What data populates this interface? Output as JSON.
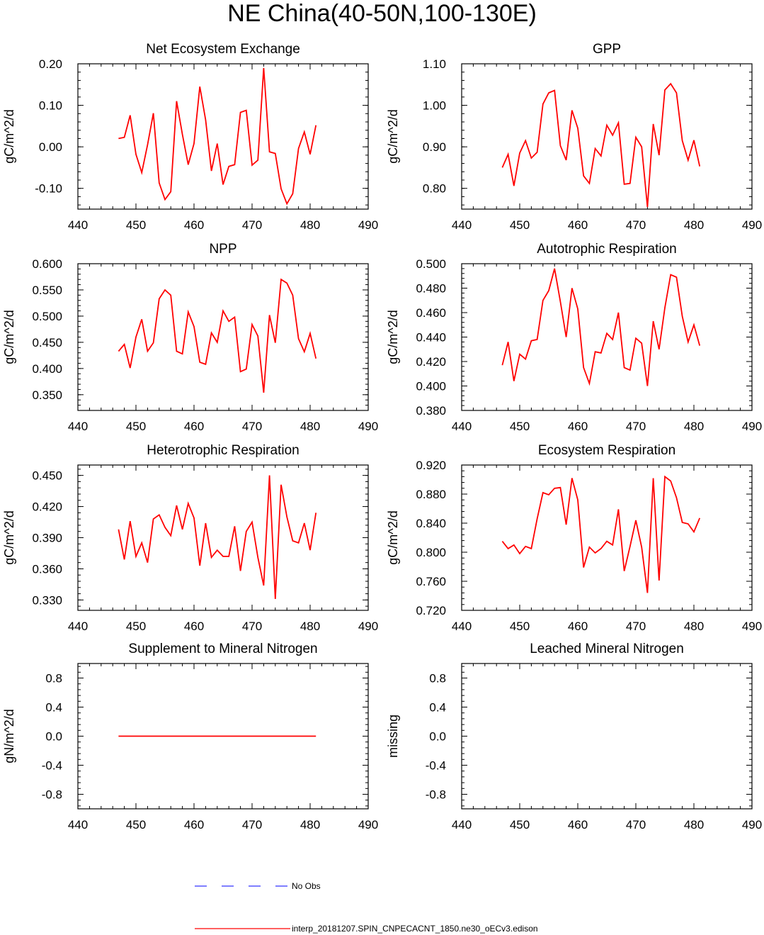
{
  "figure": {
    "title": "NE China(40-50N,100-130E)"
  },
  "legend": {
    "entries": [
      {
        "label": "No Obs",
        "color": "#3333ff",
        "style": "dashed"
      },
      {
        "label": "interp_20181207.SPIN_CNPECACNT_1850.ne30_oECv3.edison",
        "color": "#ff0000",
        "style": "solid"
      }
    ]
  },
  "chart_data": [
    {
      "type": "line",
      "title": "Net Ecosystem Exchange",
      "ylabel": "gC/m^2/d",
      "xlim": [
        440,
        490
      ],
      "ylim": [
        -0.15,
        0.2
      ],
      "xticks": [
        "440",
        "450",
        "460",
        "470",
        "480",
        "490"
      ],
      "yticks": [
        {
          "value": -0.1,
          "label": "-0.10"
        },
        {
          "value": 0.0,
          "label": "0.00"
        },
        {
          "value": 0.1,
          "label": "0.10"
        },
        {
          "value": 0.2,
          "label": "0.20"
        }
      ],
      "series": [
        {
          "name": "interp_20181207.SPIN_CNPECACNT_1850.ne30_oECv3.edison",
          "color": "#ff0000",
          "x": [
            447,
            448,
            449,
            450,
            451,
            452,
            453,
            454,
            455,
            456,
            457,
            458,
            459,
            460,
            461,
            462,
            463,
            464,
            465,
            466,
            467,
            468,
            469,
            470,
            471,
            472,
            473,
            474,
            475,
            476,
            477,
            478,
            479,
            480,
            481
          ],
          "y": [
            0.02,
            0.023,
            0.076,
            -0.018,
            -0.062,
            0.005,
            0.081,
            -0.087,
            -0.127,
            -0.108,
            0.11,
            0.03,
            -0.043,
            0.008,
            0.145,
            0.065,
            -0.058,
            0.008,
            -0.091,
            -0.047,
            -0.043,
            0.083,
            0.088,
            -0.044,
            -0.032,
            0.19,
            -0.012,
            -0.016,
            -0.101,
            -0.137,
            -0.113,
            -0.004,
            0.036,
            -0.018,
            0.052
          ]
        }
      ]
    },
    {
      "type": "line",
      "title": "GPP",
      "ylabel": "gC/m^2/d",
      "xlim": [
        440,
        490
      ],
      "ylim": [
        0.75,
        1.1
      ],
      "xticks": [
        "440",
        "450",
        "460",
        "470",
        "480",
        "490"
      ],
      "yticks": [
        {
          "value": 0.8,
          "label": "0.80"
        },
        {
          "value": 0.9,
          "label": "0.90"
        },
        {
          "value": 1.0,
          "label": "1.00"
        },
        {
          "value": 1.1,
          "label": "1.10"
        }
      ],
      "series": [
        {
          "name": "interp_20181207.SPIN_CNPECACNT_1850.ne30_oECv3.edison",
          "color": "#ff0000",
          "x": [
            447,
            448,
            449,
            450,
            451,
            452,
            453,
            454,
            455,
            456,
            457,
            458,
            459,
            460,
            461,
            462,
            463,
            464,
            465,
            466,
            467,
            468,
            469,
            470,
            471,
            472,
            473,
            474,
            475,
            476,
            477,
            478,
            479,
            480,
            481
          ],
          "y": [
            0.85,
            0.882,
            0.806,
            0.885,
            0.915,
            0.873,
            0.887,
            1.003,
            1.03,
            1.036,
            0.903,
            0.868,
            0.988,
            0.945,
            0.83,
            0.812,
            0.896,
            0.878,
            0.952,
            0.928,
            0.958,
            0.81,
            0.812,
            0.923,
            0.9,
            0.755,
            0.955,
            0.88,
            1.037,
            1.052,
            1.03,
            0.915,
            0.868,
            0.916,
            0.853
          ]
        }
      ]
    },
    {
      "type": "line",
      "title": "NPP",
      "ylabel": "gC/m^2/d",
      "xlim": [
        440,
        490
      ],
      "ylim": [
        0.32,
        0.6
      ],
      "xticks": [
        "440",
        "450",
        "460",
        "470",
        "480",
        "490"
      ],
      "yticks": [
        {
          "value": 0.35,
          "label": "0.350"
        },
        {
          "value": 0.4,
          "label": "0.400"
        },
        {
          "value": 0.45,
          "label": "0.450"
        },
        {
          "value": 0.5,
          "label": "0.500"
        },
        {
          "value": 0.55,
          "label": "0.550"
        },
        {
          "value": 0.6,
          "label": "0.600"
        }
      ],
      "series": [
        {
          "name": "interp_20181207.SPIN_CNPECACNT_1850.ne30_oECv3.edison",
          "color": "#ff0000",
          "x": [
            447,
            448,
            449,
            450,
            451,
            452,
            453,
            454,
            455,
            456,
            457,
            458,
            459,
            460,
            461,
            462,
            463,
            464,
            465,
            466,
            467,
            468,
            469,
            470,
            471,
            472,
            473,
            474,
            475,
            476,
            477,
            478,
            479,
            480,
            481
          ],
          "y": [
            0.433,
            0.446,
            0.401,
            0.46,
            0.494,
            0.433,
            0.449,
            0.533,
            0.55,
            0.54,
            0.433,
            0.428,
            0.508,
            0.48,
            0.412,
            0.408,
            0.468,
            0.45,
            0.51,
            0.49,
            0.498,
            0.394,
            0.399,
            0.484,
            0.462,
            0.354,
            0.502,
            0.449,
            0.57,
            0.563,
            0.54,
            0.457,
            0.432,
            0.467,
            0.419
          ]
        }
      ]
    },
    {
      "type": "line",
      "title": "Autotrophic Respiration",
      "ylabel": "gC/m^2/d",
      "xlim": [
        440,
        490
      ],
      "ylim": [
        0.38,
        0.5
      ],
      "xticks": [
        "440",
        "450",
        "460",
        "470",
        "480",
        "490"
      ],
      "yticks": [
        {
          "value": 0.38,
          "label": "0.380"
        },
        {
          "value": 0.4,
          "label": "0.400"
        },
        {
          "value": 0.42,
          "label": "0.420"
        },
        {
          "value": 0.44,
          "label": "0.440"
        },
        {
          "value": 0.46,
          "label": "0.460"
        },
        {
          "value": 0.48,
          "label": "0.480"
        },
        {
          "value": 0.5,
          "label": "0.500"
        }
      ],
      "series": [
        {
          "name": "interp_20181207.SPIN_CNPECACNT_1850.ne30_oECv3.edison",
          "color": "#ff0000",
          "x": [
            447,
            448,
            449,
            450,
            451,
            452,
            453,
            454,
            455,
            456,
            457,
            458,
            459,
            460,
            461,
            462,
            463,
            464,
            465,
            466,
            467,
            468,
            469,
            470,
            471,
            472,
            473,
            474,
            475,
            476,
            477,
            478,
            479,
            480,
            481
          ],
          "y": [
            0.417,
            0.436,
            0.404,
            0.426,
            0.422,
            0.437,
            0.438,
            0.47,
            0.478,
            0.496,
            0.469,
            0.44,
            0.48,
            0.463,
            0.415,
            0.402,
            0.428,
            0.427,
            0.443,
            0.438,
            0.46,
            0.415,
            0.413,
            0.439,
            0.435,
            0.4,
            0.453,
            0.43,
            0.464,
            0.491,
            0.489,
            0.457,
            0.436,
            0.45,
            0.433
          ]
        }
      ]
    },
    {
      "type": "line",
      "title": "Heterotrophic Respiration",
      "ylabel": "gC/m^2/d",
      "xlim": [
        440,
        490
      ],
      "ylim": [
        0.32,
        0.46
      ],
      "xticks": [
        "440",
        "450",
        "460",
        "470",
        "480",
        "490"
      ],
      "yticks": [
        {
          "value": 0.33,
          "label": "0.330"
        },
        {
          "value": 0.36,
          "label": "0.360"
        },
        {
          "value": 0.39,
          "label": "0.390"
        },
        {
          "value": 0.42,
          "label": "0.420"
        },
        {
          "value": 0.45,
          "label": "0.450"
        }
      ],
      "series": [
        {
          "name": "interp_20181207.SPIN_CNPECACNT_1850.ne30_oECv3.edison",
          "color": "#ff0000",
          "x": [
            447,
            448,
            449,
            450,
            451,
            452,
            453,
            454,
            455,
            456,
            457,
            458,
            459,
            460,
            461,
            462,
            463,
            464,
            465,
            466,
            467,
            468,
            469,
            470,
            471,
            472,
            473,
            474,
            475,
            476,
            477,
            478,
            479,
            480,
            481
          ],
          "y": [
            0.398,
            0.369,
            0.406,
            0.372,
            0.385,
            0.366,
            0.408,
            0.412,
            0.4,
            0.392,
            0.421,
            0.398,
            0.423,
            0.409,
            0.363,
            0.404,
            0.371,
            0.378,
            0.372,
            0.372,
            0.401,
            0.358,
            0.396,
            0.405,
            0.371,
            0.344,
            0.45,
            0.331,
            0.441,
            0.41,
            0.387,
            0.385,
            0.404,
            0.378,
            0.414
          ]
        }
      ]
    },
    {
      "type": "line",
      "title": "Ecosystem Respiration",
      "ylabel": "gC/m^2/d",
      "xlim": [
        440,
        490
      ],
      "ylim": [
        0.72,
        0.92
      ],
      "xticks": [
        "440",
        "450",
        "460",
        "470",
        "480",
        "490"
      ],
      "yticks": [
        {
          "value": 0.72,
          "label": "0.720"
        },
        {
          "value": 0.76,
          "label": "0.760"
        },
        {
          "value": 0.8,
          "label": "0.800"
        },
        {
          "value": 0.84,
          "label": "0.840"
        },
        {
          "value": 0.88,
          "label": "0.880"
        },
        {
          "value": 0.92,
          "label": "0.920"
        }
      ],
      "series": [
        {
          "name": "interp_20181207.SPIN_CNPECACNT_1850.ne30_oECv3.edison",
          "color": "#ff0000",
          "x": [
            447,
            448,
            449,
            450,
            451,
            452,
            453,
            454,
            455,
            456,
            457,
            458,
            459,
            460,
            461,
            462,
            463,
            464,
            465,
            466,
            467,
            468,
            469,
            470,
            471,
            472,
            473,
            474,
            475,
            476,
            477,
            478,
            479,
            480,
            481
          ],
          "y": [
            0.815,
            0.805,
            0.81,
            0.798,
            0.808,
            0.805,
            0.846,
            0.882,
            0.879,
            0.888,
            0.889,
            0.838,
            0.902,
            0.872,
            0.779,
            0.807,
            0.799,
            0.805,
            0.815,
            0.81,
            0.859,
            0.774,
            0.808,
            0.844,
            0.807,
            0.744,
            0.902,
            0.761,
            0.904,
            0.898,
            0.875,
            0.841,
            0.839,
            0.828,
            0.847
          ]
        }
      ]
    },
    {
      "type": "line",
      "title": "Supplement to Mineral Nitrogen",
      "ylabel": "gN/m^2/d",
      "xlim": [
        440,
        490
      ],
      "ylim": [
        -1.0,
        1.0
      ],
      "xticks": [
        "440",
        "450",
        "460",
        "470",
        "480",
        "490"
      ],
      "yticks": [
        {
          "value": -0.8,
          "label": "-0.8"
        },
        {
          "value": -0.4,
          "label": "-0.4"
        },
        {
          "value": 0.0,
          "label": "0.0"
        },
        {
          "value": 0.4,
          "label": "0.4"
        },
        {
          "value": 0.8,
          "label": "0.8"
        }
      ],
      "series": [
        {
          "name": "interp_20181207.SPIN_CNPECACNT_1850.ne30_oECv3.edison",
          "color": "#ff0000",
          "x": [
            447,
            481
          ],
          "y": [
            0.0,
            0.0
          ]
        }
      ]
    },
    {
      "type": "line",
      "title": "Leached Mineral Nitrogen",
      "ylabel": "missing",
      "xlim": [
        440,
        490
      ],
      "ylim": [
        -1.0,
        1.0
      ],
      "xticks": [
        "440",
        "450",
        "460",
        "470",
        "480",
        "490"
      ],
      "yticks": [
        {
          "value": -0.8,
          "label": "-0.8"
        },
        {
          "value": -0.4,
          "label": "-0.4"
        },
        {
          "value": 0.0,
          "label": "0.0"
        },
        {
          "value": 0.4,
          "label": "0.4"
        },
        {
          "value": 0.8,
          "label": "0.8"
        }
      ],
      "series": []
    }
  ]
}
